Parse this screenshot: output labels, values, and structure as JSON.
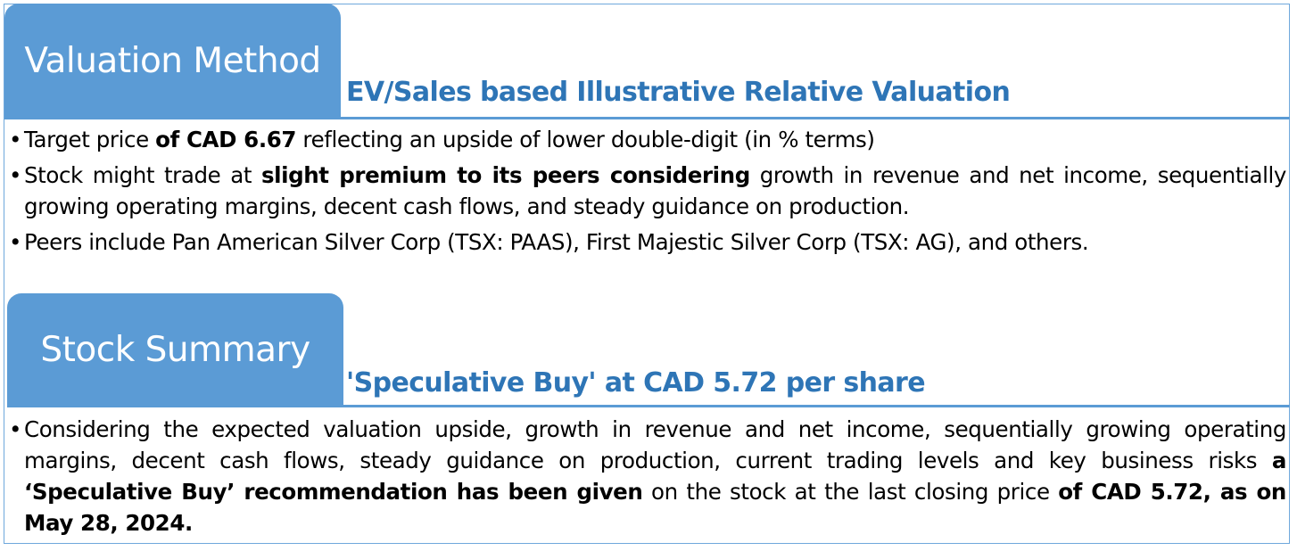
{
  "valuation": {
    "tab_label": "Valuation Method",
    "subheading": "EV/Sales based Illustrative Relative Valuation",
    "bullets": [
      {
        "a": "Target price ",
        "b": "of CAD 6.67",
        "c": " reflecting an upside of lower double-digit (in % terms)"
      },
      {
        "a": "Stock might trade at ",
        "b": "slight premium to its peers considering",
        "c": " growth in revenue and net income, sequentially growing operating margins, decent cash flows, and steady guidance on production."
      },
      {
        "a": "Peers include Pan American Silver Corp (TSX: PAAS), First Majestic Silver Corp (TSX: AG), and others."
      }
    ]
  },
  "summary": {
    "tab_label": "Stock Summary",
    "subheading": "'Speculative Buy' at CAD 5.72 per share",
    "bullets": [
      {
        "a": "Considering the expected valuation upside, growth in revenue and net income, sequentially growing operating margins, decent cash flows, steady guidance on production, current trading levels and key business risks ",
        "b": "a ‘Speculative Buy’ recommendation has been given",
        "c": " on the stock at the last closing price ",
        "d": "of CAD 5.72, as on May 28, 2024."
      }
    ]
  }
}
